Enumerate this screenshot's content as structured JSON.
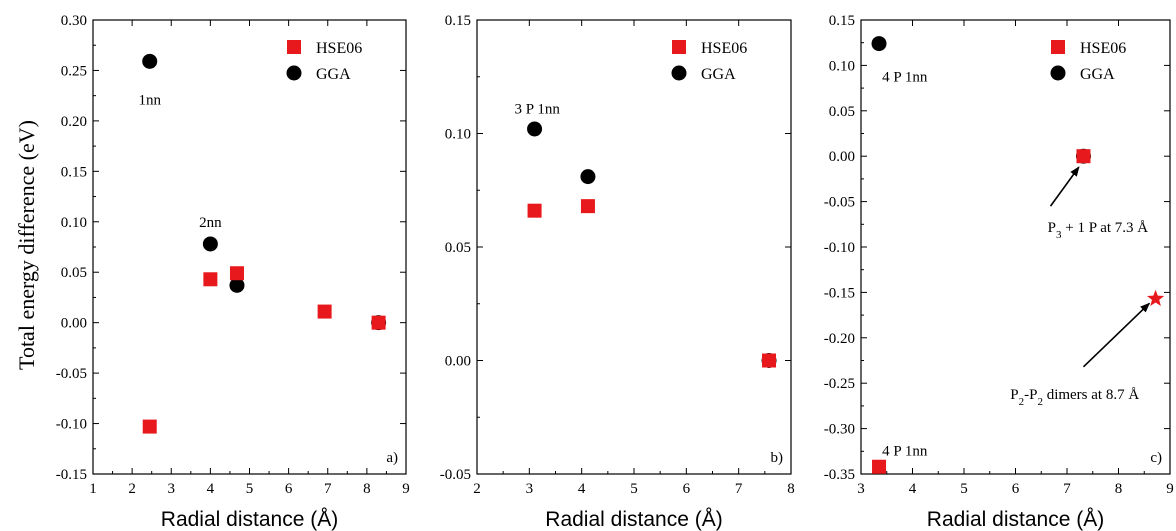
{
  "colors": {
    "hse06": "#e8191c",
    "gga": "#000000"
  },
  "shared_ylabel": "Total energy difference (eV)",
  "chart_data": [
    {
      "type": "scatter",
      "panel_label": "a)",
      "xlabel": "Radial distance (Å)",
      "xlim": [
        1,
        9
      ],
      "ylim": [
        -0.15,
        0.3
      ],
      "xticks": [
        1,
        2,
        3,
        4,
        5,
        6,
        7,
        8,
        9
      ],
      "yticks": [
        -0.15,
        -0.1,
        -0.05,
        0.0,
        0.05,
        0.1,
        0.15,
        0.2,
        0.25,
        0.3
      ],
      "ytick_decimals": 2,
      "grid": false,
      "legend": {
        "position": "top-right",
        "entries": [
          "HSE06",
          "GGA"
        ]
      },
      "series": [
        {
          "name": "HSE06",
          "marker": "square",
          "points": [
            [
              2.45,
              -0.103
            ],
            [
              4.0,
              0.043
            ],
            [
              4.68,
              0.049
            ],
            [
              6.92,
              0.011
            ],
            [
              8.3,
              0.0
            ]
          ]
        },
        {
          "name": "GGA",
          "marker": "circle",
          "points": [
            [
              2.45,
              0.259
            ],
            [
              4.0,
              0.078
            ],
            [
              4.68,
              0.037
            ],
            [
              8.3,
              0.0
            ]
          ]
        }
      ],
      "annotations": [
        {
          "text": "1nn",
          "x": 2.45,
          "y": 0.221
        },
        {
          "text": "2nn",
          "x": 4.0,
          "y": 0.1
        }
      ]
    },
    {
      "type": "scatter",
      "panel_label": "b)",
      "xlabel": "Radial distance (Å)",
      "xlim": [
        2,
        8
      ],
      "ylim": [
        -0.05,
        0.15
      ],
      "xticks": [
        2,
        3,
        4,
        5,
        6,
        7,
        8
      ],
      "yticks": [
        -0.05,
        0.0,
        0.05,
        0.1,
        0.15
      ],
      "ytick_decimals": 2,
      "grid": false,
      "legend": {
        "position": "top-right",
        "entries": [
          "HSE06",
          "GGA"
        ]
      },
      "series": [
        {
          "name": "HSE06",
          "marker": "square",
          "points": [
            [
              3.1,
              0.066
            ],
            [
              4.12,
              0.068
            ],
            [
              7.58,
              0.0
            ]
          ]
        },
        {
          "name": "GGA",
          "marker": "circle",
          "points": [
            [
              3.1,
              0.102
            ],
            [
              4.12,
              0.081
            ],
            [
              7.58,
              0.0
            ]
          ]
        }
      ],
      "annotations": [
        {
          "text": "3 P 1nn",
          "x": 3.15,
          "y": 0.111
        }
      ]
    },
    {
      "type": "scatter",
      "panel_label": "c)",
      "xlabel": "Radial distance (Å)",
      "xlim": [
        3,
        9
      ],
      "ylim": [
        -0.35,
        0.15
      ],
      "xticks": [
        3,
        4,
        5,
        6,
        7,
        8,
        9
      ],
      "yticks": [
        -0.35,
        -0.3,
        -0.25,
        -0.2,
        -0.15,
        -0.1,
        -0.05,
        0.0,
        0.05,
        0.1,
        0.15
      ],
      "ytick_decimals": 2,
      "grid": false,
      "legend": {
        "position": "top-right",
        "entries": [
          "HSE06",
          "GGA"
        ]
      },
      "series": [
        {
          "name": "HSE06",
          "marker": "square",
          "points": [
            [
              3.35,
              -0.342
            ],
            [
              7.32,
              0.0
            ]
          ]
        },
        {
          "name": "GGA",
          "marker": "circle",
          "points": [
            [
              3.35,
              0.124
            ],
            [
              7.32,
              0.0
            ]
          ]
        },
        {
          "name": "HSE06",
          "marker": "star",
          "points": [
            [
              8.72,
              -0.157
            ]
          ]
        }
      ],
      "annotations": [
        {
          "text": "4 P 1nn",
          "x": 3.85,
          "y": 0.088
        },
        {
          "text": "4 P 1nn",
          "x": 3.85,
          "y": -0.324
        },
        {
          "text": "P3 + 1 P at 7.3 Å",
          "rich": [
            [
              "P",
              ""
            ],
            [
              "3",
              "sub"
            ],
            [
              " + 1 P at 7.3 Å",
              ""
            ]
          ],
          "x": 7.6,
          "y": -0.078,
          "arrow_to": [
            7.23,
            -0.012
          ],
          "arrow_from": [
            6.68,
            -0.055
          ]
        },
        {
          "text": "P2-P2 dimers at 8.7 Å",
          "rich": [
            [
              "P",
              ""
            ],
            [
              "2",
              "sub"
            ],
            [
              "-P",
              ""
            ],
            [
              "2",
              "sub"
            ],
            [
              " dimers at 8.7 Å",
              ""
            ]
          ],
          "x": 7.15,
          "y": -0.262,
          "arrow_to": [
            8.6,
            -0.162
          ],
          "arrow_from": [
            7.32,
            -0.232
          ]
        }
      ]
    }
  ]
}
